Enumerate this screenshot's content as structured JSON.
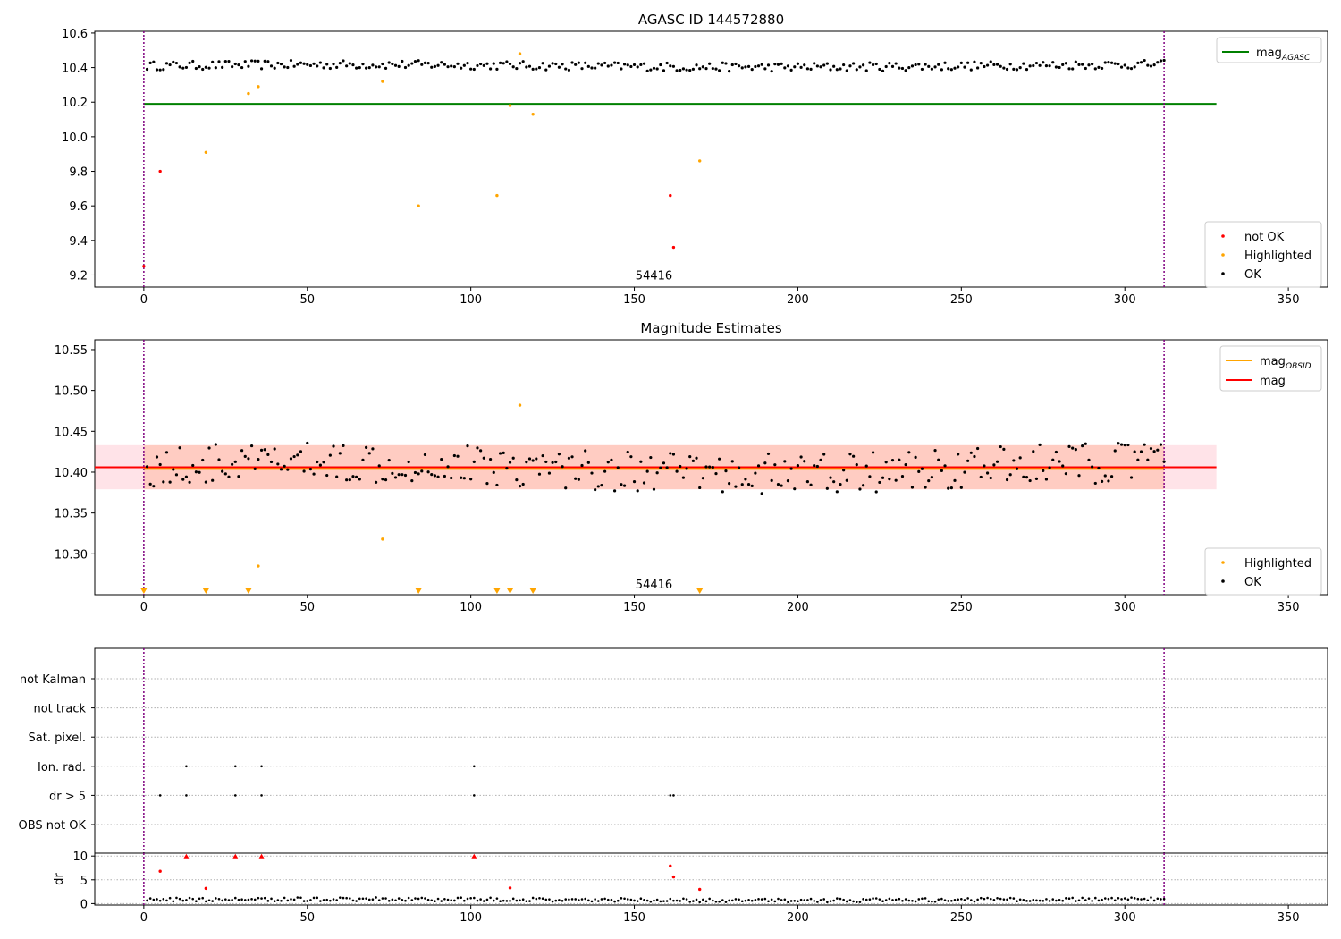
{
  "chart_data": [
    {
      "type": "scatter",
      "title": "AGASC ID 144572880",
      "xlabel": "",
      "ylabel": "",
      "xlim": [
        -15,
        362
      ],
      "ylim": [
        9.13,
        10.61
      ],
      "x_ticks": [
        0,
        50,
        100,
        150,
        200,
        250,
        300,
        350
      ],
      "y_ticks": [
        9.2,
        9.4,
        9.6,
        9.8,
        10.0,
        10.2,
        10.4,
        10.6
      ],
      "y_tick_labels": [
        "9.2",
        "9.4",
        "9.6",
        "9.8",
        "10.0",
        "10.2",
        "10.4",
        "10.6"
      ],
      "legend_lines": [
        {
          "name": "mag",
          "sub": "AGASC",
          "color": "#008000"
        }
      ],
      "legend_points": [
        {
          "name": "not OK",
          "color": "#ff0000"
        },
        {
          "name": "Highlighted",
          "color": "#ffa500"
        },
        {
          "name": "OK",
          "color": "#000000"
        }
      ],
      "hlines": [
        {
          "y": 10.19,
          "x0": 0,
          "x1": 328,
          "color": "#008000"
        }
      ],
      "vlines": [
        0,
        312
      ],
      "annotations": [
        {
          "text": "54416",
          "x": 156,
          "y": 9.2
        }
      ],
      "ok_baseline": 10.41,
      "ok_amplitude": 0.025,
      "ok_range": [
        1,
        312
      ],
      "series": [
        {
          "name": "Highlighted",
          "color": "#ffa500",
          "x": [
            19,
            32,
            35,
            73,
            84,
            108,
            112,
            115,
            119,
            170
          ],
          "y": [
            9.91,
            10.25,
            10.29,
            10.32,
            9.6,
            9.66,
            10.18,
            10.48,
            10.13,
            9.86
          ]
        },
        {
          "name": "not OK",
          "color": "#ff0000",
          "x": [
            0,
            5,
            161,
            162
          ],
          "y": [
            9.25,
            9.8,
            9.66,
            9.36
          ]
        }
      ]
    },
    {
      "type": "scatter",
      "title": "Magnitude Estimates",
      "xlabel": "",
      "ylabel": "",
      "xlim": [
        -15,
        362
      ],
      "ylim": [
        10.25,
        10.562
      ],
      "x_ticks": [
        0,
        50,
        100,
        150,
        200,
        250,
        300,
        350
      ],
      "y_ticks": [
        10.3,
        10.35,
        10.4,
        10.45,
        10.5,
        10.55
      ],
      "y_tick_labels": [
        "10.30",
        "10.35",
        "10.40",
        "10.45",
        "10.50",
        "10.55"
      ],
      "legend_lines": [
        {
          "name": "mag",
          "sub": "OBSID",
          "color": "#ffa500"
        },
        {
          "name": "mag",
          "sub": "",
          "color": "#ff0000"
        }
      ],
      "legend_points": [
        {
          "name": "Highlighted",
          "color": "#ffa500"
        },
        {
          "name": "OK",
          "color": "#000000"
        }
      ],
      "bands": [
        {
          "x0": -15,
          "x1": 328,
          "y0": 10.379,
          "y1": 10.433,
          "color": "#ffc0cb",
          "opacity": 0.45
        },
        {
          "x0": 0,
          "x1": 312,
          "y0": 10.379,
          "y1": 10.433,
          "color": "#ffa07a",
          "opacity": 0.35
        }
      ],
      "hlines": [
        {
          "y": 10.406,
          "x0": -15,
          "x1": 328,
          "color": "#ff0000"
        },
        {
          "y": 10.404,
          "x0": 0,
          "x1": 312,
          "color": "#ffa500"
        }
      ],
      "vlines": [
        0,
        312
      ],
      "annotations": [
        {
          "text": "54416",
          "x": 156,
          "y": 10.262
        }
      ],
      "ok_baseline": 10.405,
      "ok_amplitude": 0.025,
      "ok_range": [
        1,
        312
      ],
      "series": [
        {
          "name": "Highlighted",
          "color": "#ffa500",
          "x": [
            35,
            73,
            115
          ],
          "y": [
            10.285,
            10.318,
            10.482
          ]
        },
        {
          "name": "Highlighted (below axis)",
          "color": "#ffa500",
          "x": [
            0,
            19,
            32,
            84,
            108,
            112,
            119,
            170
          ],
          "y": [
            10.25,
            10.25,
            10.25,
            10.25,
            10.25,
            10.25,
            10.25,
            10.25
          ]
        }
      ]
    },
    {
      "type": "scatter",
      "title": "",
      "xlabel": "",
      "ylabel": "",
      "xlim": [
        -15,
        362
      ],
      "categories": [
        "not Kalman",
        "not track",
        "Sat. pixel.",
        "Ion. rad.",
        "dr > 5",
        "OBS not OK"
      ],
      "vlines": [
        0,
        312
      ],
      "flags": [
        {
          "category": "Ion. rad.",
          "x": [
            13,
            28,
            36,
            101
          ]
        },
        {
          "category": "dr > 5",
          "x": [
            5,
            13,
            28,
            36,
            101,
            161,
            162
          ]
        }
      ]
    },
    {
      "type": "scatter",
      "title": "",
      "xlabel": "",
      "ylabel": "dr",
      "xlim": [
        -15,
        362
      ],
      "ylim": [
        -0.3,
        10.6
      ],
      "y_ticks": [
        0,
        5,
        10
      ],
      "y_tick_labels": [
        "0",
        "5",
        "10"
      ],
      "x_ticks": [
        0,
        50,
        100,
        150,
        200,
        250,
        300,
        350
      ],
      "vlines": [
        0,
        312
      ],
      "ok_baseline": 0.8,
      "ok_amplitude": 0.4,
      "ok_range": [
        1,
        312
      ],
      "series": [
        {
          "name": "clipped",
          "color": "#ff0000",
          "marker": "triangle",
          "x": [
            13,
            28,
            36,
            101
          ],
          "y": [
            10,
            10,
            10,
            10
          ]
        },
        {
          "name": "not OK",
          "color": "#ff0000",
          "x": [
            5,
            19,
            112,
            161,
            162,
            170
          ],
          "y": [
            6.8,
            3.2,
            3.3,
            7.9,
            5.6,
            3.0
          ]
        }
      ]
    }
  ]
}
